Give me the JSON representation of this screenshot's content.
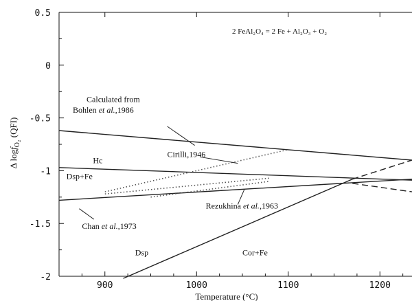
{
  "chart_data": {
    "type": "line",
    "title": "",
    "equation": {
      "lhs": "2 FeAl₂O₄",
      "eq": " = ",
      "rhs": "2 Fe + Al₂O₃ + O₂"
    },
    "xlabel": "Temperature (°C)",
    "ylabel": {
      "prefix": "Δ log",
      "f": "f",
      "sub": "O₂",
      "suffix": " (QFI)"
    },
    "xlim": [
      850,
      1235
    ],
    "ylim": [
      -2,
      0.5
    ],
    "xticks": [
      900,
      1000,
      1100,
      1200
    ],
    "yticks": [
      0.5,
      0,
      -0.5,
      -1,
      -1.5,
      -2
    ],
    "ytick_labels": [
      "0.5",
      "0",
      "-0.5",
      "-1",
      "-1.5",
      "-2"
    ],
    "series": [
      {
        "id": "bohlen",
        "style": "solid",
        "x": [
          850,
          1235
        ],
        "y": [
          -0.62,
          -0.9
        ]
      },
      {
        "id": "hc-upper",
        "style": "solid",
        "x": [
          850,
          1235
        ],
        "y": [
          -0.97,
          -1.09
        ]
      },
      {
        "id": "chan",
        "style": "solid",
        "x": [
          850,
          1235
        ],
        "y": [
          -1.28,
          -1.08
        ]
      },
      {
        "id": "cor-fe-boundary",
        "style": "solid",
        "x": [
          920,
          1170
        ],
        "y": [
          -2.02,
          -1.08
        ]
      },
      {
        "id": "cor-fe-boundary-ext",
        "style": "dashed",
        "x": [
          1170,
          1235
        ],
        "y": [
          -1.08,
          -0.9
        ]
      },
      {
        "id": "hc-upper-ext",
        "style": "dashed",
        "x": [
          1170,
          1235
        ],
        "y": [
          -1.12,
          -1.2
        ]
      },
      {
        "id": "cirilli",
        "style": "dotted",
        "x": [
          900,
          1100
        ],
        "y": [
          -1.2,
          -0.8
        ]
      },
      {
        "id": "rezukhina-a",
        "style": "dotted",
        "x": [
          900,
          1080
        ],
        "y": [
          -1.22,
          -1.07
        ]
      },
      {
        "id": "rezukhina-b",
        "style": "dotted",
        "x": [
          950,
          1080
        ],
        "y": [
          -1.25,
          -1.1
        ]
      }
    ],
    "annotations": [
      {
        "id": "calculated-from",
        "x": 880,
        "y": -0.35,
        "parts": [
          {
            "t": "Calculated from"
          }
        ]
      },
      {
        "id": "bohlen",
        "x": 865,
        "y": -0.45,
        "parts": [
          {
            "t": "Bohlen "
          },
          {
            "t": "et al.",
            "i": true
          },
          {
            "t": ",1986"
          }
        ]
      },
      {
        "id": "cirilli",
        "x": 968,
        "y": -0.87,
        "parts": [
          {
            "t": "Cirilli,1946"
          }
        ]
      },
      {
        "id": "hc",
        "x": 887,
        "y": -0.93,
        "parts": [
          {
            "t": "Hc"
          }
        ]
      },
      {
        "id": "dsp-fe",
        "x": 858,
        "y": -1.08,
        "parts": [
          {
            "t": "Dsp+Fe"
          }
        ]
      },
      {
        "id": "rezukhina",
        "x": 1010,
        "y": -1.36,
        "parts": [
          {
            "t": "Rezukhina "
          },
          {
            "t": "et al.",
            "i": true
          },
          {
            "t": ",1963"
          }
        ]
      },
      {
        "id": "chan",
        "x": 875,
        "y": -1.55,
        "parts": [
          {
            "t": "Chan "
          },
          {
            "t": "et al.",
            "i": true
          },
          {
            "t": ",1973"
          }
        ]
      },
      {
        "id": "dsp",
        "x": 933,
        "y": -1.8,
        "parts": [
          {
            "t": "Dsp"
          }
        ]
      },
      {
        "id": "cor-fe",
        "x": 1050,
        "y": -1.8,
        "parts": [
          {
            "t": "Cor+Fe"
          }
        ]
      }
    ],
    "leaders": [
      {
        "id": "bohlen-leader",
        "x": [
          968,
          998
        ],
        "y": [
          -0.58,
          -0.76
        ]
      },
      {
        "id": "cirilli-leader",
        "x": [
          1004,
          1045
        ],
        "y": [
          -0.87,
          -0.93
        ]
      },
      {
        "id": "rezukhina-leader",
        "x": [
          1045,
          1052
        ],
        "y": [
          -1.32,
          -1.18
        ]
      },
      {
        "id": "chan-leader",
        "x": [
          888,
          872
        ],
        "y": [
          -1.46,
          -1.36
        ]
      }
    ]
  }
}
